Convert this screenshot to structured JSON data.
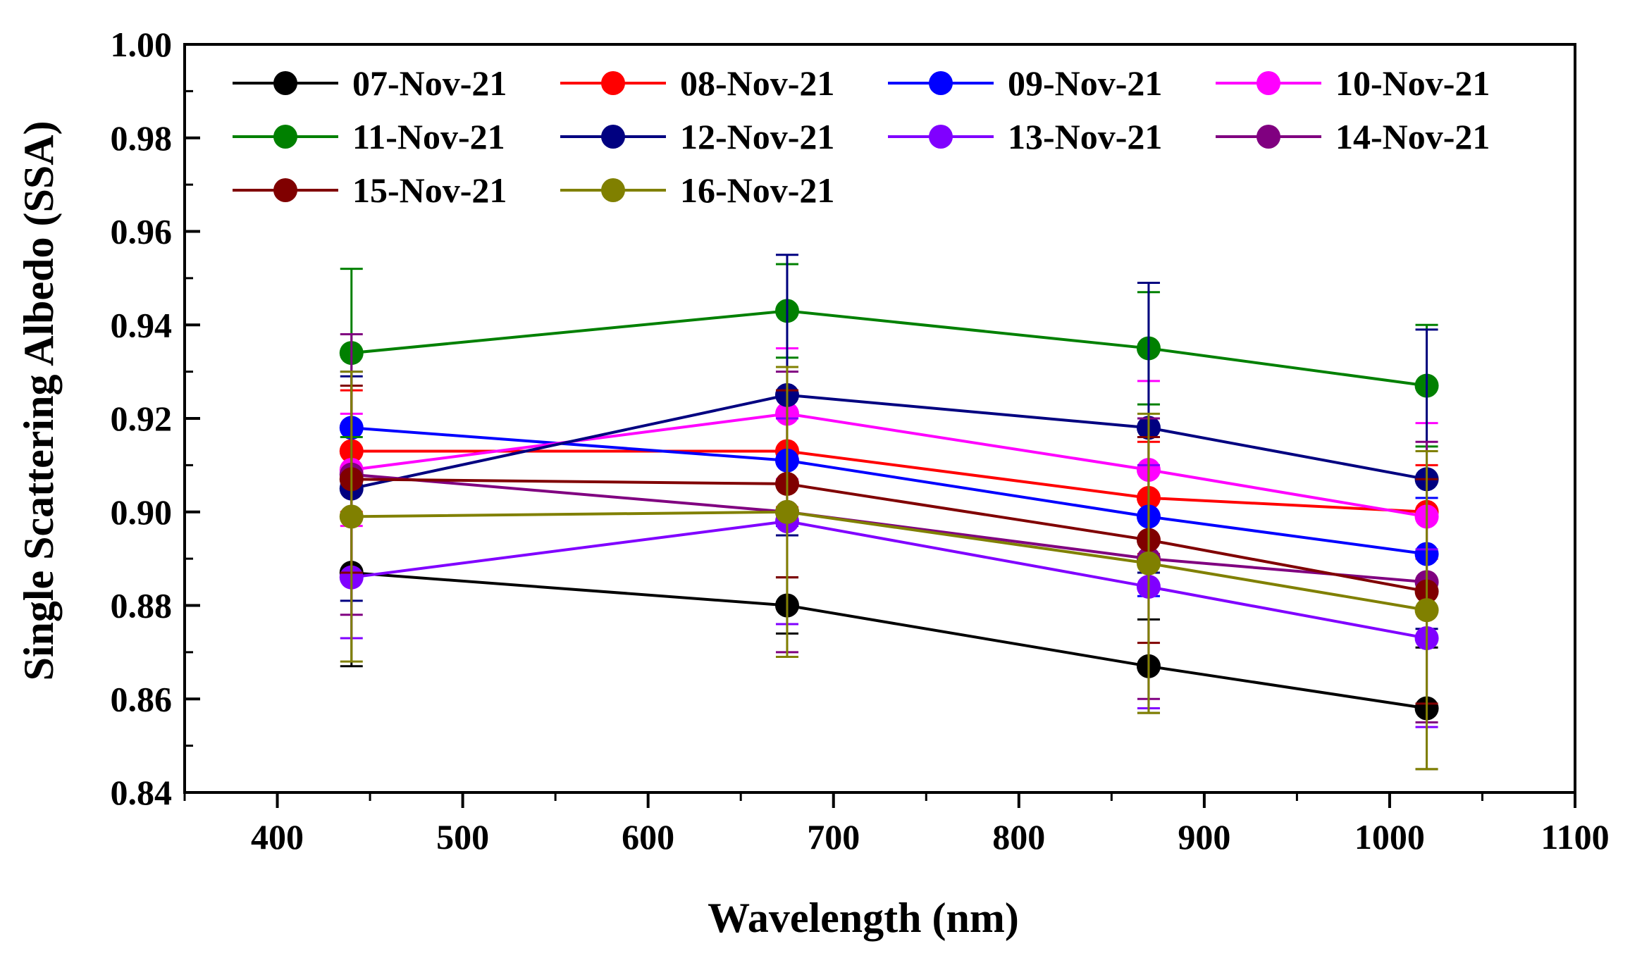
{
  "chart_data": {
    "type": "line",
    "title": "",
    "xlabel": "Wavelength (nm)",
    "ylabel": "Single Scattering Albedo (SSA)",
    "xlim": [
      350,
      1100
    ],
    "ylim": [
      0.84,
      1.0
    ],
    "xticks": [
      400,
      500,
      600,
      700,
      800,
      900,
      1000,
      1100
    ],
    "xtick_labels": [
      "400",
      "500",
      "600",
      "700",
      "800",
      "900",
      "1000",
      "1100"
    ],
    "yticks": [
      0.84,
      0.86,
      0.88,
      0.9,
      0.92,
      0.94,
      0.96,
      0.98,
      1.0
    ],
    "ytick_labels": [
      "0.84",
      "0.86",
      "0.88",
      "0.90",
      "0.92",
      "0.94",
      "0.96",
      "0.98",
      "1.00"
    ],
    "legend_position": "top-left",
    "x": [
      440,
      675,
      870,
      1020
    ],
    "series": [
      {
        "name": "07-Nov-21",
        "color": "#000000",
        "values": [
          0.887,
          0.88,
          0.867,
          0.858
        ],
        "errors": [
          0.02,
          0.006,
          0.01,
          0.013
        ]
      },
      {
        "name": "08-Nov-21",
        "color": "#ff0000",
        "values": [
          0.913,
          0.913,
          0.903,
          0.9
        ],
        "errors": [
          0.013,
          0.012,
          0.012,
          0.01
        ]
      },
      {
        "name": "09-Nov-21",
        "color": "#0000ff",
        "values": [
          0.918,
          0.911,
          0.899,
          0.891
        ],
        "errors": [
          0.012,
          0.014,
          0.017,
          0.012
        ]
      },
      {
        "name": "10-Nov-21",
        "color": "#ff00ff",
        "values": [
          0.909,
          0.921,
          0.909,
          0.899
        ],
        "errors": [
          0.012,
          0.014,
          0.019,
          0.02
        ]
      },
      {
        "name": "11-Nov-21",
        "color": "#008000",
        "values": [
          0.934,
          0.943,
          0.935,
          0.927
        ],
        "errors": [
          0.018,
          0.01,
          0.012,
          0.013
        ]
      },
      {
        "name": "12-Nov-21",
        "color": "#000080",
        "values": [
          0.905,
          0.925,
          0.918,
          0.907
        ],
        "errors": [
          0.024,
          0.03,
          0.031,
          0.032
        ]
      },
      {
        "name": "13-Nov-21",
        "color": "#8000ff",
        "values": [
          0.886,
          0.898,
          0.884,
          0.873
        ],
        "errors": [
          0.013,
          0.022,
          0.026,
          0.019
        ]
      },
      {
        "name": "14-Nov-21",
        "color": "#800080",
        "values": [
          0.908,
          0.9,
          0.89,
          0.885
        ],
        "errors": [
          0.03,
          0.03,
          0.03,
          0.03
        ]
      },
      {
        "name": "15-Nov-21",
        "color": "#800000",
        "values": [
          0.907,
          0.906,
          0.894,
          0.883
        ],
        "errors": [
          0.02,
          0.02,
          0.022,
          0.024
        ]
      },
      {
        "name": "16-Nov-21",
        "color": "#808000",
        "values": [
          0.899,
          0.9,
          0.889,
          0.879
        ],
        "errors": [
          0.031,
          0.031,
          0.032,
          0.034
        ]
      }
    ]
  }
}
